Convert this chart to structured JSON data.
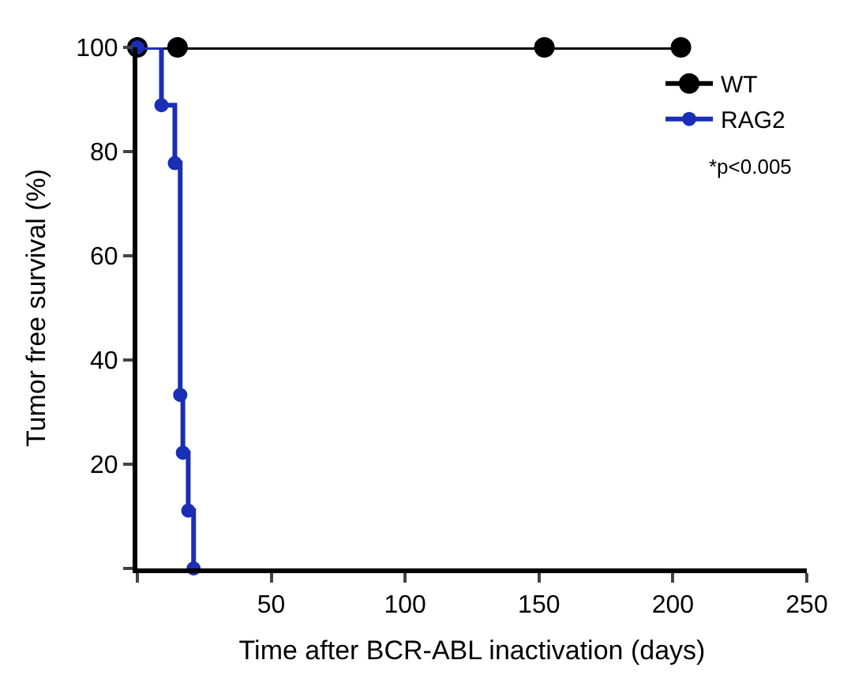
{
  "chart_data": {
    "type": "line",
    "xlabel": "Time after BCR-ABL inactivation (days)",
    "ylabel": "Tumor free survival (%)",
    "series": [
      {
        "name": "WT",
        "color": "#000000",
        "x": [
          0,
          15,
          152,
          203
        ],
        "values": [
          100,
          100,
          100,
          100
        ]
      },
      {
        "name": "RAG2",
        "color": "#1a2fb5",
        "type": "step",
        "x": [
          0,
          9,
          14,
          16,
          17,
          19,
          21
        ],
        "values": [
          100,
          88.9,
          77.8,
          33.3,
          22.2,
          11.1,
          0
        ]
      }
    ],
    "xlim": [
      0,
      250
    ],
    "xticks": [
      {
        "value": 0,
        "label": null
      },
      50,
      100,
      150,
      200,
      250
    ],
    "ylim": [
      0,
      100
    ],
    "yticks": [
      {
        "value": 0,
        "label": null
      },
      20,
      40,
      60,
      80,
      100
    ],
    "annotations": [
      "*p<0.005"
    ],
    "legend": "top right",
    "marker": "circle",
    "line_style": "solid"
  }
}
